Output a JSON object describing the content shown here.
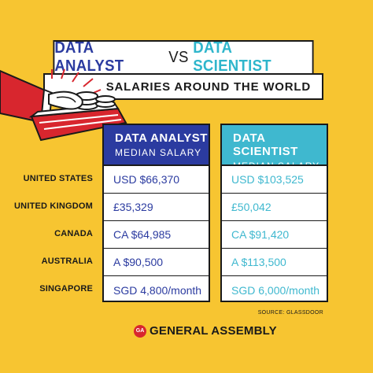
{
  "title": {
    "left": "DATA ANALYST",
    "vs": "VS",
    "right": "DATA SCIENTIST"
  },
  "subtitle": "SALARIES AROUND THE WORLD",
  "headers": {
    "analyst": {
      "title": "DATA ANALYST",
      "sub": "MEDIAN SALARY"
    },
    "scientist": {
      "title": "DATA SCIENTIST",
      "sub": "MEDIAN SALARY"
    }
  },
  "chart_data": {
    "type": "table",
    "columns": [
      "DATA ANALYST MEDIAN SALARY",
      "DATA SCIENTIST MEDIAN SALARY"
    ],
    "rows": [
      {
        "country": "UNITED STATES",
        "analyst": "USD $66,370",
        "scientist": "USD $103,525"
      },
      {
        "country": "UNITED KINGDOM",
        "analyst": "£35,329",
        "scientist": "£50,042"
      },
      {
        "country": "CANADA",
        "analyst": "CA $64,985",
        "scientist": "CA $91,420"
      },
      {
        "country": "AUSTRALIA",
        "analyst": "A $90,500",
        "scientist": "A $113,500"
      },
      {
        "country": "SINGAPORE",
        "analyst": "SGD 4,800/month",
        "scientist": "SGD 6,000/month"
      }
    ]
  },
  "source": "SOURCE: GLASSDOOR",
  "brand": {
    "logo": "GA",
    "name": "GENERAL ASSEMBLY"
  },
  "colors": {
    "background": "#F7C531",
    "analyst": "#2B3BA0",
    "scientist": "#3FB8CF",
    "accent": "#D8262E"
  },
  "icons": {
    "illustration": "hand-holding-money-icon"
  }
}
